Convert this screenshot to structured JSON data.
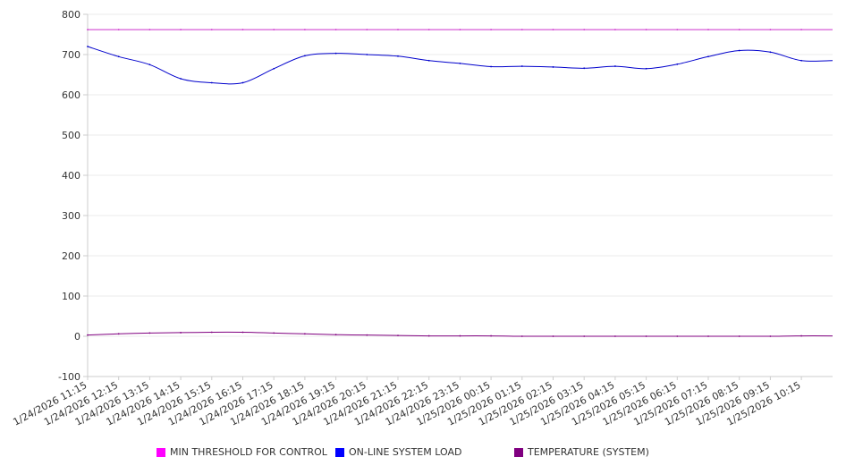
{
  "chart_data": {
    "type": "line",
    "title": "",
    "xlabel": "",
    "ylabel": "",
    "ylim": [
      -100,
      800
    ],
    "yticks": [
      -100,
      0,
      100,
      200,
      300,
      400,
      500,
      600,
      700,
      800
    ],
    "grid": true,
    "legend_position": "bottom",
    "categories": [
      "1/24/2026 11:15",
      "1/24/2026 12:15",
      "1/24/2026 13:15",
      "1/24/2026 14:15",
      "1/24/2026 15:15",
      "1/24/2026 16:15",
      "1/24/2026 17:15",
      "1/24/2026 18:15",
      "1/24/2026 19:15",
      "1/24/2026 20:15",
      "1/24/2026 21:15",
      "1/24/2026 22:15",
      "1/24/2026 23:15",
      "1/25/2026 00:15",
      "1/25/2026 01:15",
      "1/25/2026 02:15",
      "1/25/2026 03:15",
      "1/25/2026 04:15",
      "1/25/2026 05:15",
      "1/25/2026 06:15",
      "1/25/2026 07:15",
      "1/25/2026 08:15",
      "1/25/2026 09:15",
      "1/25/2026 10:15"
    ],
    "series": [
      {
        "name": "MIN THRESHOLD FOR CONTROL",
        "color": "#cc33cc",
        "legend_color": "#ff00ff",
        "values": [
          762,
          762,
          762,
          762,
          762,
          762,
          762,
          762,
          762,
          762,
          762,
          762,
          762,
          762,
          762,
          762,
          762,
          762,
          762,
          762,
          762,
          762,
          762,
          762
        ]
      },
      {
        "name": "ON-LINE SYSTEM LOAD",
        "color": "#0000cc",
        "legend_color": "#0000ff",
        "values": [
          720,
          695,
          675,
          640,
          630,
          630,
          665,
          697,
          703,
          700,
          696,
          685,
          678,
          670,
          671,
          669,
          666,
          671,
          665,
          676,
          695,
          710,
          706,
          685
        ]
      },
      {
        "name": "TEMPERATURE (SYSTEM)",
        "color": "#800080",
        "legend_color": "#800080",
        "values": [
          3,
          6,
          8,
          9,
          10,
          10,
          8,
          6,
          4,
          3,
          2,
          1,
          1,
          1,
          0,
          0,
          0,
          0,
          0,
          0,
          0,
          0,
          0,
          1
        ]
      }
    ]
  }
}
